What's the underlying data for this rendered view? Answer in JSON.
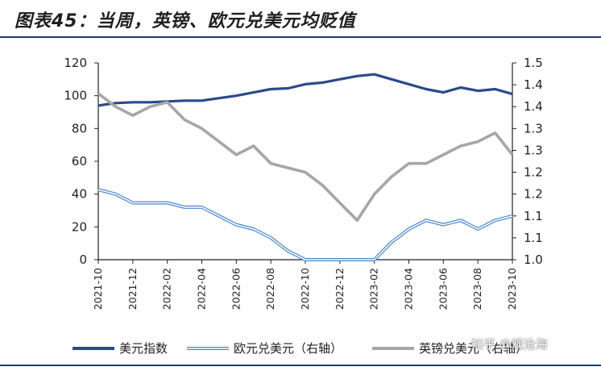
{
  "title": "图表45：当周，英镑、欧元兑美元均贬值",
  "watermark": "知乎 @观沧海",
  "colors": {
    "usd": "#2b4a8b",
    "eur": "#4a86c8",
    "gbp": "#a6a6a6",
    "axis": "#222222",
    "rule": "#1f3b73"
  },
  "chart_data": {
    "type": "line",
    "x_labels": [
      "2021-10",
      "2021-12",
      "2022-02",
      "2022-04",
      "2022-06",
      "2022-08",
      "2022-10",
      "2022-12",
      "2023-02",
      "2023-04",
      "2023-06",
      "2023-08",
      "2023-10"
    ],
    "x_range": [
      "2021-10",
      "2023-10"
    ],
    "y_left": {
      "min": 0,
      "max": 120,
      "ticks": [
        "0",
        "20",
        "40",
        "60",
        "80",
        "100",
        "120"
      ]
    },
    "y_right": {
      "min": 1.0,
      "max": 1.45,
      "ticks": [
        "1.0",
        "1.1",
        "1.1",
        "1.2",
        "1.2",
        "1.3",
        "1.3",
        "1.4",
        "1.4",
        "1.5"
      ]
    },
    "series": [
      {
        "name": "美元指数",
        "axis": "left",
        "style": "thick",
        "x": [
          0,
          1,
          2,
          3,
          4,
          5,
          6,
          7,
          8,
          9,
          10,
          11,
          12,
          13,
          14,
          15,
          16,
          17,
          18,
          19,
          20,
          21,
          22,
          23,
          24
        ],
        "y": [
          94,
          95.5,
          96,
          96,
          96.5,
          97,
          97,
          98.5,
          100,
          102,
          104,
          104.5,
          107,
          108,
          110,
          112,
          113,
          110,
          107,
          104,
          102,
          105,
          103,
          104,
          101
        ]
      },
      {
        "name": "欧元兑美元（右轴）",
        "axis": "right",
        "style": "double",
        "x": [
          0,
          1,
          2,
          3,
          4,
          5,
          6,
          7,
          8,
          9,
          10,
          11,
          12,
          13,
          14,
          15,
          16,
          17,
          18,
          19,
          20,
          21,
          22,
          23,
          24
        ],
        "y": [
          1.16,
          1.15,
          1.13,
          1.13,
          1.13,
          1.12,
          1.12,
          1.1,
          1.08,
          1.07,
          1.05,
          1.02,
          1.0,
          1.0,
          0.99,
          0.98,
          0.99,
          1.04,
          1.07,
          1.09,
          1.08,
          1.09,
          1.07,
          1.09,
          1.1
        ]
      },
      {
        "name": "英镑兑美元（右轴）",
        "axis": "right",
        "style": "thick",
        "x": [
          0,
          1,
          2,
          3,
          4,
          5,
          6,
          7,
          8,
          9,
          10,
          11,
          12,
          13,
          14,
          15,
          16,
          17,
          18,
          19,
          20,
          21,
          22,
          23,
          24
        ],
        "y": [
          1.38,
          1.35,
          1.33,
          1.35,
          1.36,
          1.32,
          1.3,
          1.27,
          1.24,
          1.26,
          1.22,
          1.21,
          1.2,
          1.17,
          1.13,
          1.09,
          1.15,
          1.19,
          1.22,
          1.22,
          1.24,
          1.26,
          1.27,
          1.29,
          1.24
        ]
      }
    ],
    "legend_position": "bottom"
  }
}
